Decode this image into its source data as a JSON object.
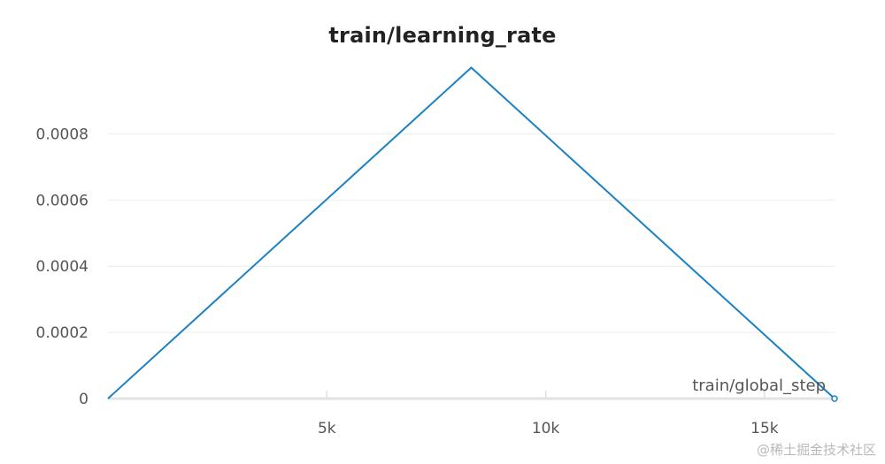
{
  "chart_data": {
    "type": "line",
    "title": "train/learning_rate",
    "xlabel": "train/global_step",
    "ylabel": "",
    "xlim": [
      0,
      16600
    ],
    "ylim": [
      0,
      0.00102
    ],
    "x_ticks": [
      5000,
      10000,
      15000
    ],
    "x_tick_labels": [
      "5k",
      "10k",
      "15k"
    ],
    "y_ticks": [
      0,
      0.0002,
      0.0004,
      0.0006,
      0.0008
    ],
    "y_tick_labels": [
      "0",
      "0.0002",
      "0.0004",
      "0.0006",
      "0.0008"
    ],
    "grid": true,
    "series": [
      {
        "x": [
          0,
          8300,
          16600
        ],
        "y": [
          0,
          0.001,
          0
        ],
        "color": "#1a82c4"
      }
    ]
  },
  "watermark": "@稀土掘金技术社区"
}
